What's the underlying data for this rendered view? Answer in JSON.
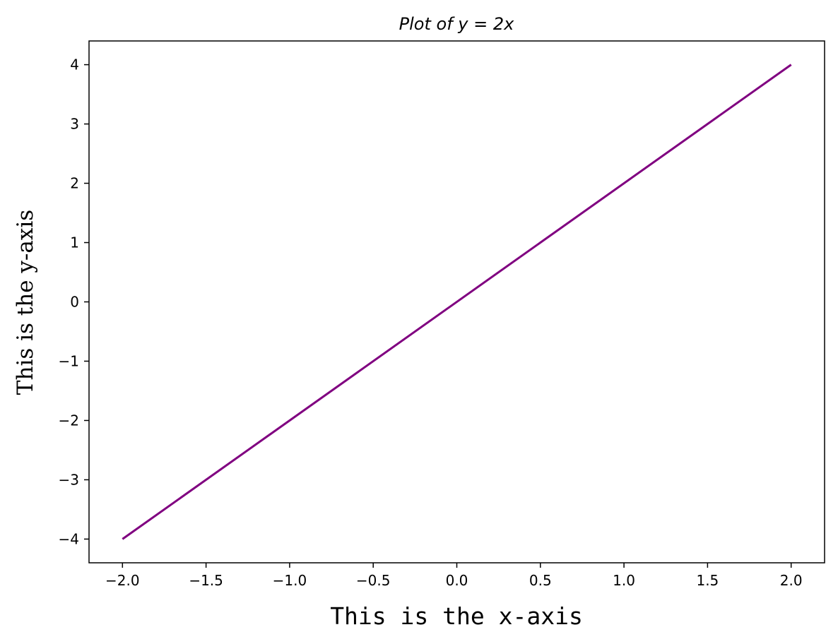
{
  "chart_data": {
    "type": "line",
    "title": "Plot of y = 2x",
    "xlabel": "This is the x-axis",
    "ylabel": "This is the y-axis",
    "xlim": [
      -2.2,
      2.2
    ],
    "ylim": [
      -4.4,
      4.4
    ],
    "x_ticks": [
      -2.0,
      -1.5,
      -1.0,
      -0.5,
      0.0,
      0.5,
      1.0,
      1.5,
      2.0
    ],
    "x_tick_labels": [
      "−2.0",
      "−1.5",
      "−1.0",
      "−0.5",
      "0.0",
      "0.5",
      "1.0",
      "1.5",
      "2.0"
    ],
    "y_ticks": [
      -4,
      -3,
      -2,
      -1,
      0,
      1,
      2,
      3,
      4
    ],
    "y_tick_labels": [
      "−4",
      "−3",
      "−2",
      "−1",
      "0",
      "1",
      "2",
      "3",
      "4"
    ],
    "grid": false,
    "series": [
      {
        "color": "#800080",
        "x": [
          -2.0,
          2.0
        ],
        "y": [
          -4.0,
          4.0
        ]
      }
    ]
  }
}
